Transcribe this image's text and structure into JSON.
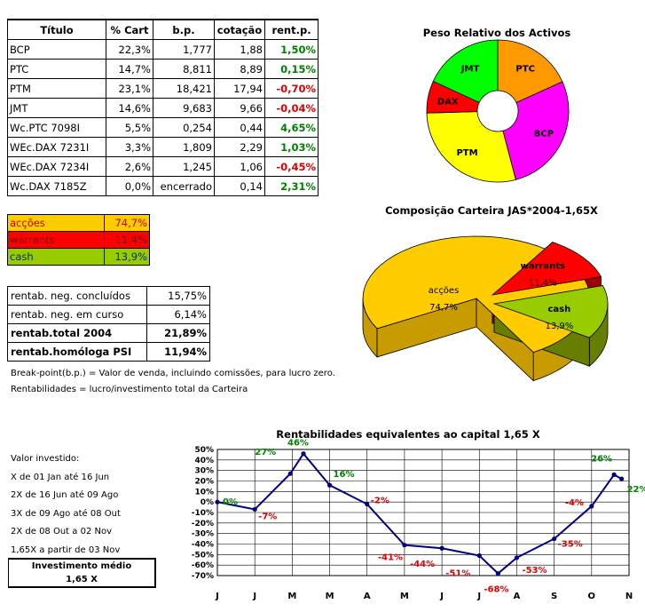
{
  "holdings_table": {
    "headers": [
      "Título",
      "% Cart",
      "b.p.",
      "cotação",
      "rent.p."
    ],
    "rows": [
      {
        "title": "BCP",
        "pct": "22,3%",
        "bp": "1,777",
        "price": "1,88",
        "rent": "1,50%",
        "sign": "pos"
      },
      {
        "title": "PTC",
        "pct": "14,7%",
        "bp": "8,811",
        "price": "8,89",
        "rent": "0,15%",
        "sign": "pos"
      },
      {
        "title": "PTM",
        "pct": "23,1%",
        "bp": "18,421",
        "price": "17,94",
        "rent": "-0,70%",
        "sign": "neg"
      },
      {
        "title": "JMT",
        "pct": "14,6%",
        "bp": "9,683",
        "price": "9,66",
        "rent": "-0,04%",
        "sign": "neg"
      },
      {
        "title": "Wc.PTC 7098I",
        "pct": "5,5%",
        "bp": "0,254",
        "price": "0,44",
        "rent": "4,65%",
        "sign": "pos"
      },
      {
        "title": "WEc.DAX 7231I",
        "pct": "3,3%",
        "bp": "1,809",
        "price": "2,29",
        "rent": "1,03%",
        "sign": "pos"
      },
      {
        "title": "WEc.DAX 7234I",
        "pct": "2,6%",
        "bp": "1,245",
        "price": "1,06",
        "rent": "-0,45%",
        "sign": "neg"
      },
      {
        "title": "Wc.DAX 7185Z",
        "pct": "0,0%",
        "bp": "encerrado",
        "price": "0,14",
        "rent": "2,31%",
        "sign": "pos"
      }
    ]
  },
  "allocation": [
    {
      "label": "acções",
      "value": "74,7%",
      "color": "#ffcc00",
      "text_color": "#c00000"
    },
    {
      "label": "warrants",
      "value": "11,4%",
      "color": "#ff0000",
      "text_color": "#800000"
    },
    {
      "label": "cash",
      "value": "13,9%",
      "color": "#99cc00",
      "text_color": "#003366"
    }
  ],
  "returns": [
    {
      "label": "rentab. neg. concluídos",
      "value": "15,75%",
      "bold": false
    },
    {
      "label": "rentab. neg. em curso",
      "value": "6,14%",
      "bold": false
    },
    {
      "label": "rentab.total 2004",
      "value": "21,89%",
      "bold": true
    },
    {
      "label": "rentab.homóloga PSI",
      "value": "11,94%",
      "bold": true
    }
  ],
  "notes": {
    "breakpoint": "Break-point(b.p.) = Valor de venda, incluindo comissões, para lucro zero.",
    "rentabilidades": "Rentabilidades = lucro/investimento total da Carteira"
  },
  "investment": {
    "heading": "Valor investido:",
    "lines": [
      "X de 01 Jan até 16 Jun",
      "2X de 16 Jun até 09 Ago",
      "3X de 09 Ago até 08 Out",
      "2X de 08 Out a 02 Nov",
      "1,65X a partir de 03 Nov"
    ],
    "avg_label": "Investimento médio",
    "avg_value": "1,65 X"
  },
  "chart_data": [
    {
      "type": "pie",
      "title": "Peso Relativo dos Activos",
      "categories": [
        "PTC",
        "BCP",
        "PTM",
        "DAX",
        "JMT"
      ],
      "values": [
        14.7,
        22.3,
        23.1,
        5.9,
        14.6
      ],
      "colors": [
        "#ff9900",
        "#ff00ff",
        "#ffff00",
        "#ff0000",
        "#00ff00"
      ],
      "style": "doughnut"
    },
    {
      "type": "pie",
      "title": "Composição Carteira JAS*2004-1,65X",
      "categories": [
        "acções",
        "warrants",
        "cash"
      ],
      "values": [
        74.7,
        11.4,
        13.9
      ],
      "labels": [
        "74,7%",
        "11,4%",
        "13,9%"
      ],
      "colors": [
        "#ffcc00",
        "#ff0000",
        "#99cc00"
      ],
      "style": "3d-exploded"
    },
    {
      "type": "line",
      "title": "Rentabilidades equivalentes ao capital 1,65 X",
      "x": [
        "J",
        "J",
        "M",
        "M",
        "A",
        "M",
        "J",
        "J",
        "A",
        "S",
        "O",
        "N"
      ],
      "ylim": [
        -70,
        50
      ],
      "yticks": [
        50,
        40,
        30,
        20,
        10,
        0,
        -10,
        -20,
        -30,
        -40,
        -50,
        -60,
        -70
      ],
      "series": [
        {
          "name": "rentabilidade",
          "color": "#000080",
          "points": [
            {
              "x": 0,
              "y": 0,
              "label": "0%"
            },
            {
              "x": 1,
              "y": -7,
              "label": "-7%"
            },
            {
              "x": 1.95,
              "y": 27,
              "label": "27%"
            },
            {
              "x": 2.3,
              "y": 46,
              "label": "46%"
            },
            {
              "x": 3,
              "y": 16,
              "label": "16%"
            },
            {
              "x": 4,
              "y": -2,
              "label": "-2%"
            },
            {
              "x": 5,
              "y": -41,
              "label": "-41%"
            },
            {
              "x": 6,
              "y": -44,
              "label": "-44%"
            },
            {
              "x": 7,
              "y": -51,
              "label": "-51%"
            },
            {
              "x": 7.5,
              "y": -68,
              "label": "-68%"
            },
            {
              "x": 8,
              "y": -53,
              "label": "-53%"
            },
            {
              "x": 9,
              "y": -35,
              "label": "-35%"
            },
            {
              "x": 10,
              "y": -4,
              "label": "-4%"
            },
            {
              "x": 10.6,
              "y": 26,
              "label": "26%"
            },
            {
              "x": 10.8,
              "y": 22,
              "label": "22%"
            }
          ]
        }
      ]
    }
  ]
}
